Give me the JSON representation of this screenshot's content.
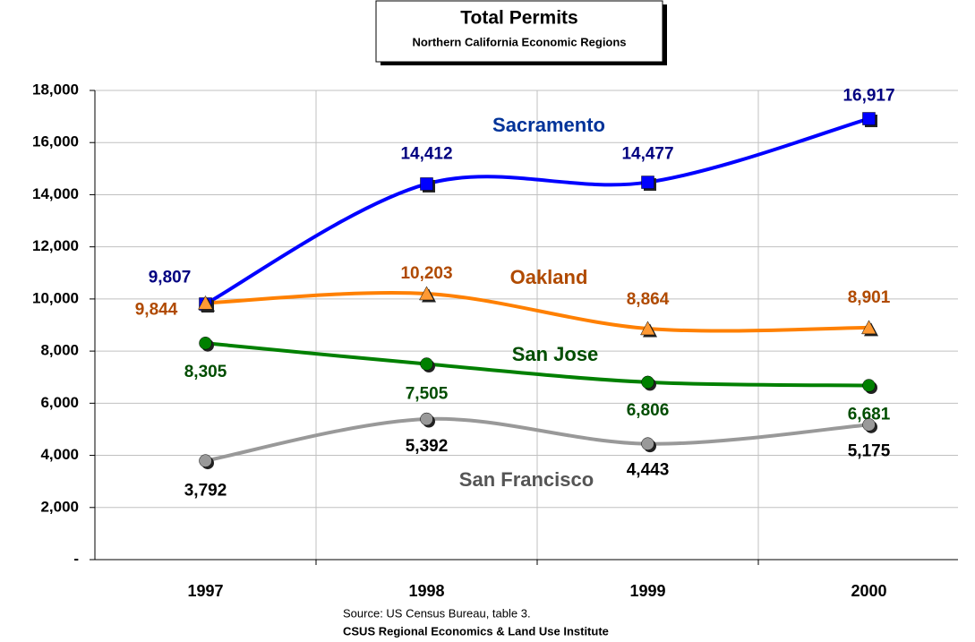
{
  "chart_data": {
    "type": "line",
    "title": "Total Permits",
    "subtitle": "Northern California Economic Regions",
    "categories": [
      "1997",
      "1998",
      "1999",
      "2000"
    ],
    "series": [
      {
        "name": "Sacramento",
        "color": "#0000ff",
        "label_color": "#000080",
        "name_color": "#003399",
        "marker": "square",
        "marker_color": "#0000ff",
        "values": [
          9807,
          14412,
          14477,
          16917
        ],
        "value_labels": [
          "9,807",
          "14,412",
          "14,477",
          "16,917"
        ]
      },
      {
        "name": "Oakland",
        "color": "#ff8000",
        "label_color": "#b04a00",
        "name_color": "#b04a00",
        "marker": "triangle",
        "marker_color": "#ff9933",
        "values": [
          9844,
          10203,
          8864,
          8901
        ],
        "value_labels": [
          "9,844",
          "10,203",
          "8,864",
          "8,901"
        ]
      },
      {
        "name": "San Jose",
        "color": "#008000",
        "label_color": "#004d00",
        "name_color": "#004d00",
        "marker": "circle",
        "marker_color": "#008000",
        "values": [
          8305,
          7505,
          6806,
          6681
        ],
        "value_labels": [
          "8,305",
          "7,505",
          "6,806",
          "6,681"
        ]
      },
      {
        "name": "San Francisco",
        "color": "#999999",
        "label_color": "#000000",
        "name_color": "#555555",
        "marker": "circle",
        "marker_color": "#999999",
        "values": [
          3792,
          5392,
          4443,
          5175
        ],
        "value_labels": [
          "3,792",
          "5,392",
          "4,443",
          "5,175"
        ]
      }
    ],
    "ylim": [
      0,
      18000
    ],
    "yticks": [
      {
        "value": 0,
        "label": "-"
      },
      {
        "value": 2000,
        "label": "2,000"
      },
      {
        "value": 4000,
        "label": "4,000"
      },
      {
        "value": 6000,
        "label": "6,000"
      },
      {
        "value": 8000,
        "label": "8,000"
      },
      {
        "value": 10000,
        "label": "10,000"
      },
      {
        "value": 12000,
        "label": "12,000"
      },
      {
        "value": 14000,
        "label": "14,000"
      },
      {
        "value": 16000,
        "label": "16,000"
      },
      {
        "value": 18000,
        "label": "18,000"
      }
    ],
    "grid": true,
    "source": "Source:  US Census Bureau, table 3.",
    "credit": "CSUS Regional Economics & Land Use Institute"
  }
}
